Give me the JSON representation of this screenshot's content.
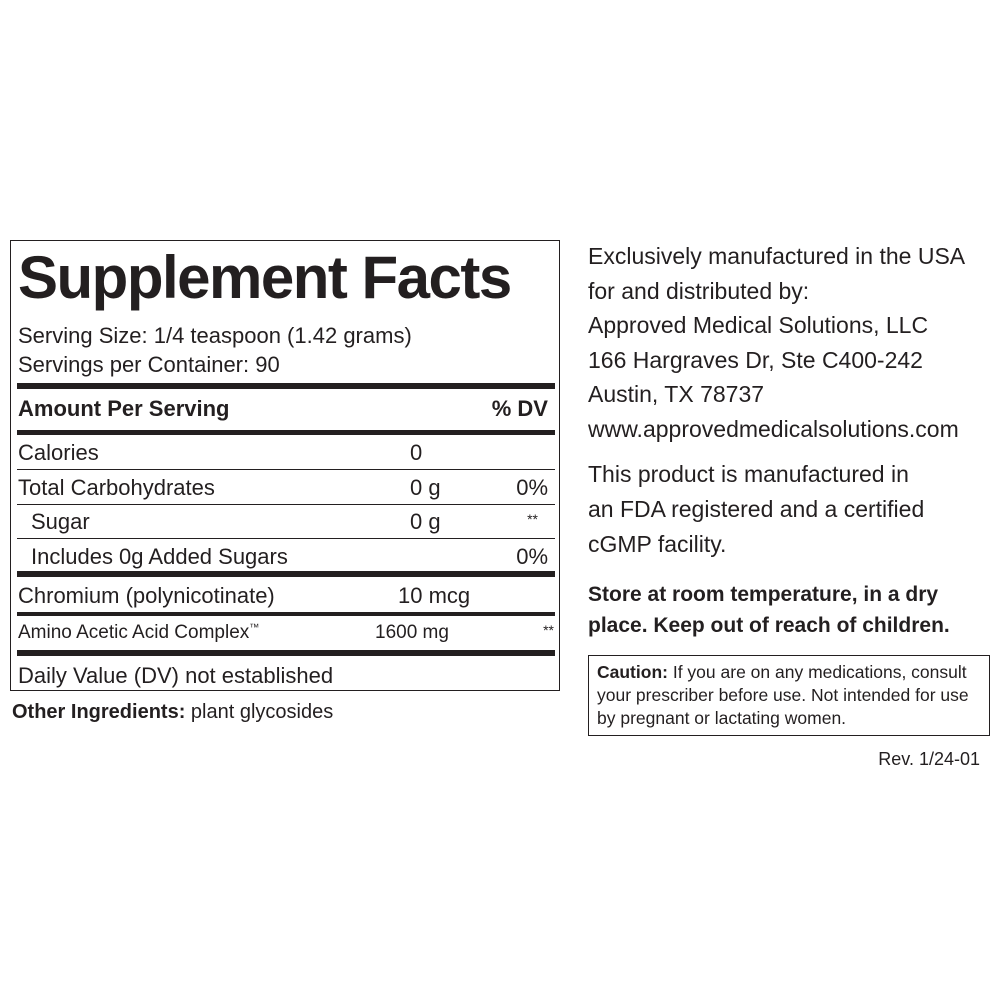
{
  "panel": {
    "title": "Supplement Facts",
    "serving_size": "Serving Size: 1/4 teaspoon (1.42 grams)",
    "servings": "Servings per Container: 90",
    "header": {
      "amount": "Amount Per Serving",
      "dv": "% DV"
    },
    "rows": [
      {
        "name": "Calories",
        "amount": "0"
      },
      {
        "name": "Total Carbohydrates",
        "amount": "0 g",
        "dv": "0%"
      },
      {
        "name": "Sugar",
        "amount": "0 g",
        "dv": "**"
      },
      {
        "name": "Includes 0g Added Sugars",
        "dv": "0%"
      },
      {
        "name": "Chromium (polynicotinate)",
        "amount": "10 mcg"
      },
      {
        "name": "Amino Acetic Acid Complex",
        "mark": "™",
        "amount": "1600 mg",
        "dv": "**"
      }
    ],
    "footnote": "Daily Value (DV) not established",
    "other_label": "Other Ingredients:",
    "other_text": "plant glycosides"
  },
  "info": {
    "address": [
      "Exclusively manufactured in the USA",
      "for and distributed by:",
      "Approved Medical Solutions, LLC",
      "166 Hargraves Dr, Ste C400-242",
      "Austin, TX 78737",
      "www.approvedmedicalsolutions.com"
    ],
    "facility": [
      "This product is manufactured in",
      "an FDA registered and a certified",
      "cGMP facility."
    ],
    "storage": [
      "Store at room temperature, in a dry",
      "place. Keep out of reach of children."
    ],
    "caution_label": "Caution:",
    "caution_text": "If you are on any medications, consult your prescriber before use. Not intended for use by pregnant or lactating women.",
    "revision": "Rev. 1/24-01"
  }
}
